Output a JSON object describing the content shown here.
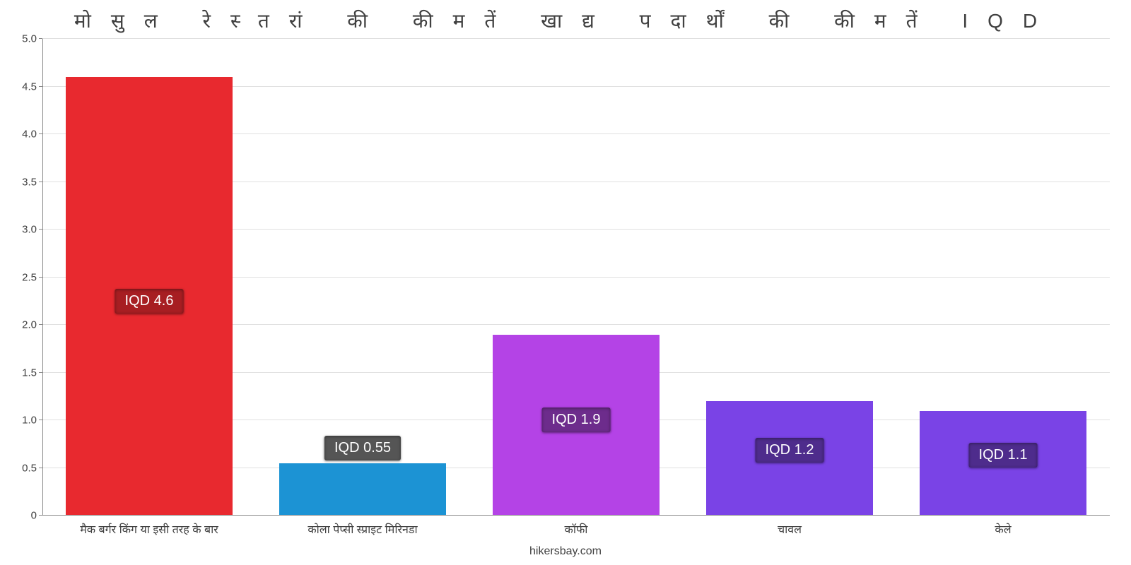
{
  "chart": {
    "type": "bar",
    "title": "मोसुल रेस्तरां की कीमतें खाद्य पदार्थों की कीमतें IQD",
    "title_fontsize": 28,
    "title_letter_spacing": 28,
    "footer": "hikersbay.com",
    "background_color": "#ffffff",
    "grid_color": "#e0e0e0",
    "axis_color": "#888888",
    "text_color": "#404040",
    "y": {
      "min": 0,
      "max": 5.0,
      "ticks": [
        {
          "v": 0,
          "label": "0"
        },
        {
          "v": 0.5,
          "label": "0.5"
        },
        {
          "v": 1.0,
          "label": "1.0"
        },
        {
          "v": 1.5,
          "label": "1.5"
        },
        {
          "v": 2.0,
          "label": "2.0"
        },
        {
          "v": 2.5,
          "label": "2.5"
        },
        {
          "v": 3.0,
          "label": "3.0"
        },
        {
          "v": 3.5,
          "label": "3.5"
        },
        {
          "v": 4.0,
          "label": "4.0"
        },
        {
          "v": 4.5,
          "label": "4.5"
        },
        {
          "v": 5.0,
          "label": "5.0"
        }
      ]
    },
    "bar_width_pct": 78,
    "bars": [
      {
        "category": "मैक बर्गर किंग या इसी तरह के बार",
        "value": 4.6,
        "value_label": "IQD 4.6",
        "fill": "#e8292f",
        "badge_bg": "#a71e22",
        "label_bottom_pct": 46
      },
      {
        "category": "कोला पेप्सी स्प्राइट मिरिनडा",
        "value": 0.55,
        "value_label": "IQD 0.55",
        "fill": "#1c93d4",
        "badge_bg": "#555555",
        "label_bottom_pct": 100
      },
      {
        "category": "कॉफी",
        "value": 1.9,
        "value_label": "IQD 1.9",
        "fill": "#b443e6",
        "badge_bg": "#6d2c8c",
        "label_bottom_pct": 46
      },
      {
        "category": "चावल",
        "value": 1.2,
        "value_label": "IQD 1.2",
        "fill": "#7a43e6",
        "badge_bg": "#4e2c8c",
        "label_bottom_pct": 46
      },
      {
        "category": "केले",
        "value": 1.1,
        "value_label": "IQD 1.1",
        "fill": "#7a43e6",
        "badge_bg": "#4e2c8c",
        "label_bottom_pct": 46
      }
    ]
  }
}
